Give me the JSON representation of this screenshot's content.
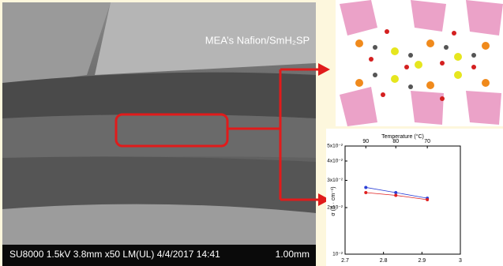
{
  "sem_image": {
    "label": "MEA’s Nafion/SmH₂SP",
    "caption": "SU8000 1.5kV 3.8mm x50 LM(UL) 4/4/2017 14:41",
    "scale_bar": "1.00mm"
  },
  "chart_data": {
    "type": "line",
    "x2_label": "Temperature (°C)",
    "y_label": "σ (S · cm⁻¹)",
    "series": [
      {
        "color": "#2b3fd6",
        "x": [
          2.754,
          2.832,
          2.914
        ],
        "values": [
          0.027,
          0.025,
          0.023
        ]
      },
      {
        "color": "#e02020",
        "x": [
          2.754,
          2.832,
          2.914
        ],
        "values": [
          0.025,
          0.024,
          0.0225
        ]
      }
    ],
    "xlim": [
      2.7,
      3.0
    ],
    "xticks": [
      2.7,
      2.8,
      2.9,
      3.0
    ],
    "x2ticks": [
      {
        "value": 2.754,
        "label": "90"
      },
      {
        "value": 2.832,
        "label": "80"
      },
      {
        "value": 2.914,
        "label": "70"
      }
    ],
    "ylim": [
      0.01,
      0.05
    ],
    "log_y": true,
    "yticks": [
      {
        "value": 0.01,
        "label": "10⁻²"
      },
      {
        "value": 0.02,
        "label": "2x10⁻²"
      },
      {
        "value": 0.03,
        "label": "3x10⁻²"
      },
      {
        "value": 0.04,
        "label": "4x10⁻²"
      },
      {
        "value": 0.05,
        "label": "5x10⁻²"
      }
    ]
  }
}
